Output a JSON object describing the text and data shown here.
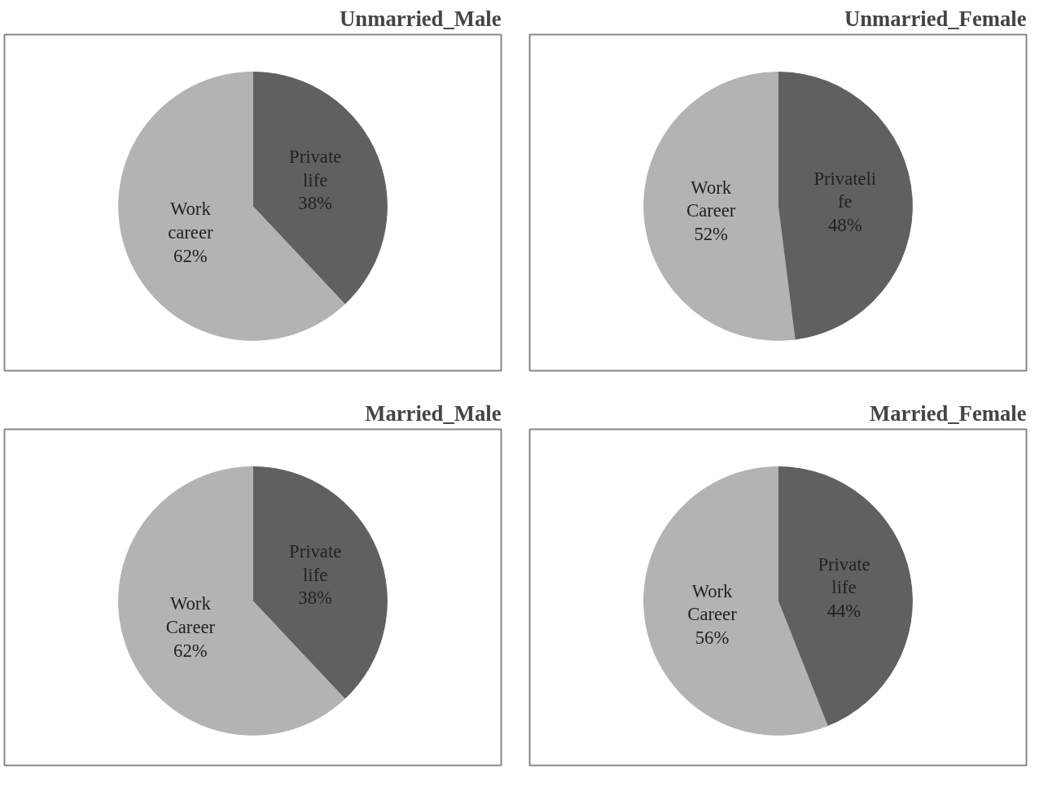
{
  "chart_data": [
    {
      "type": "pie",
      "title": "Unmarried_Male",
      "categories": [
        "Private life",
        "Work career"
      ],
      "values": [
        38,
        62
      ],
      "value_labels": [
        "38%",
        "62%"
      ],
      "colors": [
        "#606060",
        "#b3b3b3"
      ]
    },
    {
      "type": "pie",
      "title": "Unmarried_Female",
      "categories": [
        "Privateli fe",
        "Work Career"
      ],
      "values": [
        48,
        52
      ],
      "value_labels": [
        "48%",
        "52%"
      ],
      "colors": [
        "#606060",
        "#b3b3b3"
      ]
    },
    {
      "type": "pie",
      "title": "Married_Male",
      "categories": [
        "Private life",
        "Work Career"
      ],
      "values": [
        38,
        62
      ],
      "value_labels": [
        "38%",
        "62%"
      ],
      "colors": [
        "#606060",
        "#b3b3b3"
      ]
    },
    {
      "type": "pie",
      "title": "Married_Female",
      "categories": [
        "Private life",
        "Work Career"
      ],
      "values": [
        44,
        56
      ],
      "value_labels": [
        "44%",
        "56%"
      ],
      "colors": [
        "#606060",
        "#b3b3b3"
      ]
    }
  ]
}
